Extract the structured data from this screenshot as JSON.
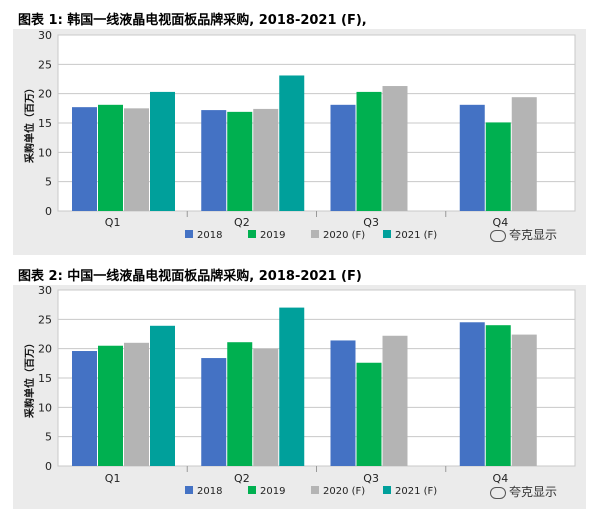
{
  "chart_data": [
    {
      "type": "bar",
      "title": "图表 1: 韩国一线液晶电视面板品牌采购, 2018-2021 (F),",
      "ylabel": "采购单位（百万）",
      "xlabel": "",
      "ylim": [
        0,
        30
      ],
      "yticks": [
        "0",
        "5",
        "10",
        "15",
        "20",
        "25",
        "30"
      ],
      "categories": [
        "Q1",
        "Q2",
        "Q3",
        "Q4"
      ],
      "series": [
        {
          "name": "2018",
          "color": "#4472c4",
          "values": [
            17.7,
            17.2,
            18.1,
            18.1
          ]
        },
        {
          "name": "2019",
          "color": "#00b050",
          "values": [
            18.1,
            16.9,
            20.3,
            15.1
          ]
        },
        {
          "name": "2020 (F)",
          "color": "#b4b4b4",
          "values": [
            17.5,
            17.4,
            21.3,
            19.4
          ]
        },
        {
          "name": "2021 (F)",
          "color": "#00a09b",
          "values": [
            20.3,
            23.1,
            null,
            null
          ]
        }
      ],
      "grid": true,
      "legend": "bottom"
    },
    {
      "type": "bar",
      "title": "图表 2: 中国一线液晶电视面板品牌采购, 2018-2021 (F)",
      "ylabel": "采购单位（百万）",
      "xlabel": "",
      "ylim": [
        0,
        30
      ],
      "yticks": [
        "0",
        "5",
        "10",
        "15",
        "20",
        "25",
        "30"
      ],
      "categories": [
        "Q1",
        "Q2",
        "Q3",
        "Q4"
      ],
      "series": [
        {
          "name": "2018",
          "color": "#4472c4",
          "values": [
            19.6,
            18.4,
            21.4,
            24.5
          ]
        },
        {
          "name": "2019",
          "color": "#00b050",
          "values": [
            20.5,
            21.1,
            17.6,
            24.0
          ]
        },
        {
          "name": "2020 (F)",
          "color": "#b4b4b4",
          "values": [
            21.0,
            20.0,
            22.2,
            22.4
          ]
        },
        {
          "name": "2021 (F)",
          "color": "#00a09b",
          "values": [
            23.9,
            27.0,
            null,
            null
          ]
        }
      ],
      "grid": true,
      "legend": "bottom"
    }
  ],
  "watermark": {
    "text": "夸克显示",
    "icon": "wechat-icon"
  }
}
